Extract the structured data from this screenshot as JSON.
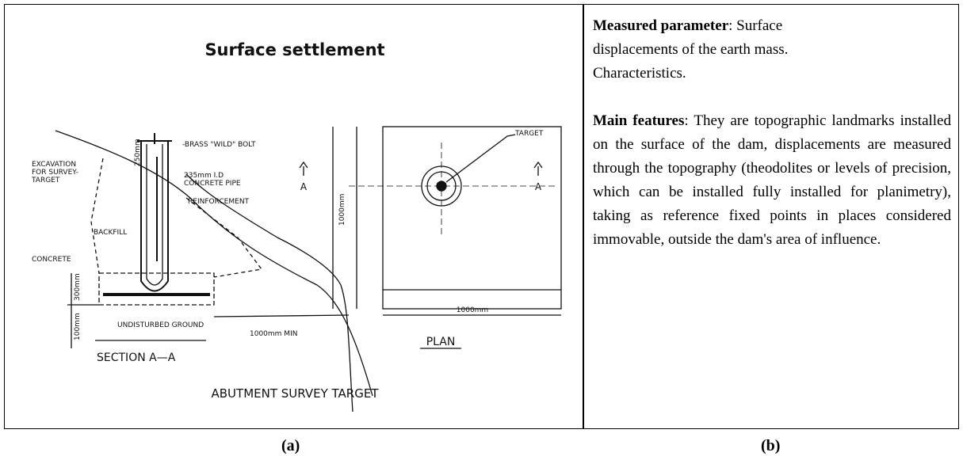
{
  "figure": {
    "left": {
      "title": "Surface settlement",
      "labels": {
        "bolt": "-BRASS \"WILD\" BOLT",
        "pipe": [
          "235mm I.D",
          "CONCRETE PIPE"
        ],
        "excavation": [
          "EXCAVATION",
          "FOR SURVEY-",
          "TARGET"
        ],
        "reinforcement": "REINFORCEMENT",
        "backfill": "BACKFILL",
        "concrete": "CONCRETE",
        "dim_250": "250mm",
        "dim_300": "300mm",
        "dim_100": "100mm",
        "ground": "UNDISTURBED GROUND",
        "dim_min": "1000mm MIN",
        "section": "SECTION  A—A",
        "section_marks": [
          "A",
          "A"
        ],
        "target": "TARGET",
        "plan_dim_v": "1000mm",
        "plan_dim_h": "1000mm",
        "plan": "PLAN",
        "caption": "ABUTMENT  SURVEY  TARGET"
      }
    },
    "right": {
      "measured": {
        "label": "Measured parameter",
        "text": ": Surface",
        "lines": [
          "displacements of the earth mass.",
          "Characteristics."
        ]
      },
      "features": {
        "label": "Main features",
        "text": ": They are topographic landmarks installed on the surface of the dam, displacements are measured through the topography (theodolites or levels of precision, which can be installed fully installed for planimetry), taking as reference fixed points in places considered immovable, outside the dam's area of influence."
      }
    },
    "captions": [
      "(a)",
      "(b)"
    ]
  }
}
